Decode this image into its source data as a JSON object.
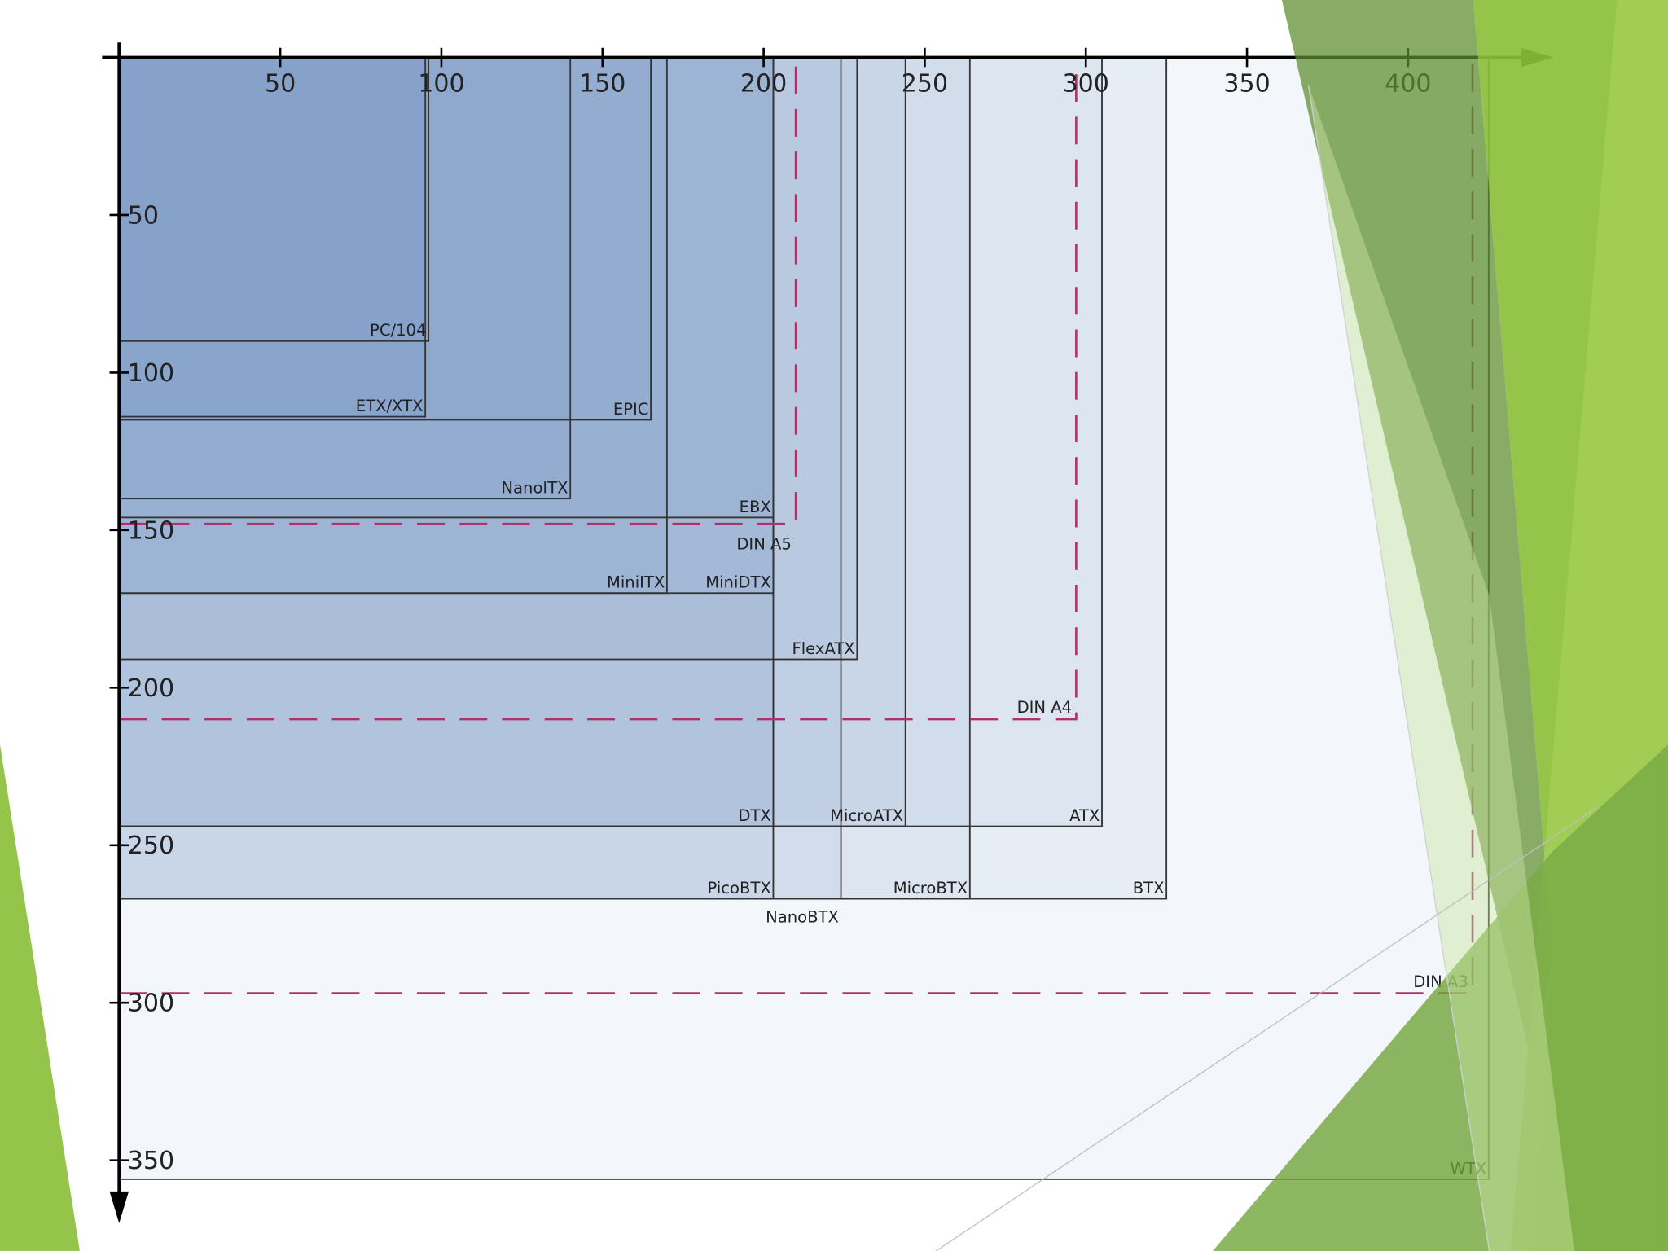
{
  "diagram": {
    "xlim": [
      0,
      445
    ],
    "ylim": [
      0,
      370
    ],
    "xticks": [
      50,
      100,
      150,
      200,
      250,
      300,
      350,
      400
    ],
    "yticks": [
      50,
      100,
      150,
      200,
      250,
      300,
      350
    ],
    "boards": [
      {
        "label": "WTX",
        "width": 425,
        "height": 356
      },
      {
        "label": "BTX",
        "width": 325,
        "height": 267
      },
      {
        "label": "MicroBTX",
        "width": 264,
        "height": 267
      },
      {
        "label": "NanoBTX",
        "width": 224,
        "height": 267
      },
      {
        "label": "PicoBTX",
        "width": 203,
        "height": 267
      },
      {
        "label": "ATX",
        "width": 305,
        "height": 244
      },
      {
        "label": "MicroATX",
        "width": 244,
        "height": 244
      },
      {
        "label": "DTX",
        "width": 203,
        "height": 244
      },
      {
        "label": "FlexATX",
        "width": 229,
        "height": 191
      },
      {
        "label": "MiniDTX",
        "width": 203,
        "height": 170
      },
      {
        "label": "MiniITX",
        "width": 170,
        "height": 170
      },
      {
        "label": "EBX",
        "width": 203,
        "height": 146
      },
      {
        "label": "NanoITX",
        "width": 140,
        "height": 140
      },
      {
        "label": "EPIC",
        "width": 165,
        "height": 115
      },
      {
        "label": "ETX/XTX",
        "width": 95,
        "height": 114
      },
      {
        "label": "PC/104",
        "width": 96,
        "height": 90
      }
    ],
    "papers": [
      {
        "label": "DIN A5",
        "width": 210,
        "height": 148
      },
      {
        "label": "DIN A4",
        "width": 297,
        "height": 210
      },
      {
        "label": "DIN A3",
        "width": 420,
        "height": 297
      }
    ]
  }
}
